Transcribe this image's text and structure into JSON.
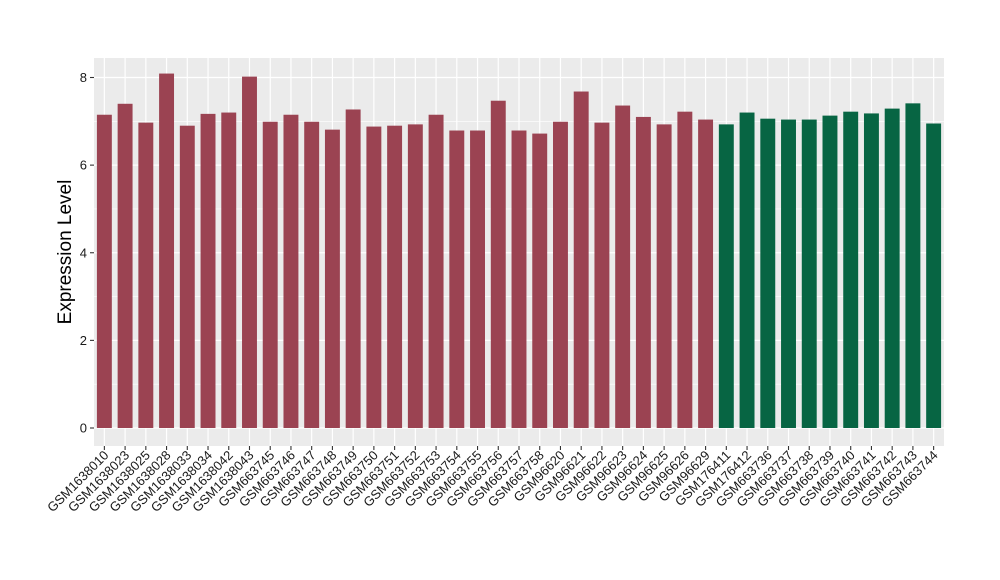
{
  "chart_data": {
    "type": "bar",
    "title": "",
    "xlabel": "",
    "ylabel": "Expression Level",
    "ylim": [
      0,
      8.25
    ],
    "yticks": [
      0,
      2,
      4,
      6,
      8
    ],
    "grid": true,
    "legend": "none",
    "colors": {
      "group1": "#9B4352",
      "group2": "#076543",
      "panel_bg": "#EBEBEB",
      "gridline": "#FFFFFF"
    },
    "categories": [
      "GSM1638010",
      "GSM1638023",
      "GSM1638025",
      "GSM1638028",
      "GSM1638033",
      "GSM1638034",
      "GSM1638042",
      "GSM1638043",
      "GSM663745",
      "GSM663746",
      "GSM663747",
      "GSM663748",
      "GSM663749",
      "GSM663750",
      "GSM663751",
      "GSM663752",
      "GSM663753",
      "GSM663754",
      "GSM663755",
      "GSM663756",
      "GSM663757",
      "GSM663758",
      "GSM96620",
      "GSM96621",
      "GSM96622",
      "GSM96623",
      "GSM96624",
      "GSM96625",
      "GSM96626",
      "GSM96629",
      "GSM176411",
      "GSM176412",
      "GSM663736",
      "GSM663737",
      "GSM663738",
      "GSM663739",
      "GSM663740",
      "GSM663741",
      "GSM663742",
      "GSM663743",
      "GSM663744"
    ],
    "values": [
      7.15,
      7.4,
      6.97,
      8.09,
      6.9,
      7.17,
      7.2,
      8.02,
      6.99,
      7.15,
      6.99,
      6.81,
      7.27,
      6.88,
      6.9,
      6.93,
      7.15,
      6.79,
      6.79,
      7.47,
      6.79,
      6.72,
      6.99,
      7.68,
      6.97,
      7.36,
      7.1,
      6.93,
      7.22,
      7.04,
      6.93,
      7.2,
      7.06,
      7.04,
      7.04,
      7.13,
      7.22,
      7.18,
      7.29,
      7.41,
      6.95
    ],
    "groups": [
      "group1",
      "group1",
      "group1",
      "group1",
      "group1",
      "group1",
      "group1",
      "group1",
      "group1",
      "group1",
      "group1",
      "group1",
      "group1",
      "group1",
      "group1",
      "group1",
      "group1",
      "group1",
      "group1",
      "group1",
      "group1",
      "group1",
      "group1",
      "group1",
      "group1",
      "group1",
      "group1",
      "group1",
      "group1",
      "group1",
      "group2",
      "group2",
      "group2",
      "group2",
      "group2",
      "group2",
      "group2",
      "group2",
      "group2",
      "group2",
      "group2"
    ]
  }
}
